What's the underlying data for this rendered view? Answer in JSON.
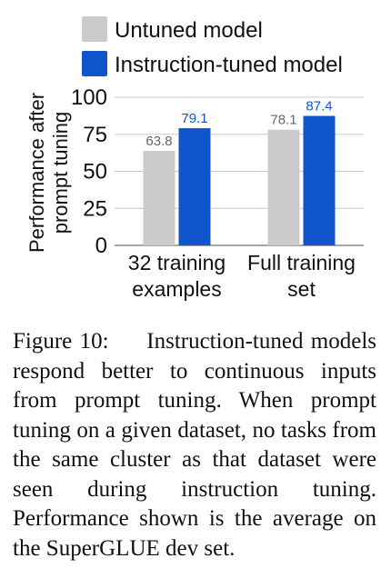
{
  "chart_data": {
    "type": "bar",
    "categories": [
      [
        "32 training",
        "examples"
      ],
      [
        "Full training",
        "set"
      ]
    ],
    "series": [
      {
        "name": "Untuned model",
        "values": [
          63.8,
          78.1
        ],
        "color": "#cccccc",
        "label_color": "#666666"
      },
      {
        "name": "Instruction-tuned model",
        "values": [
          79.1,
          87.4
        ],
        "color": "#1155cc",
        "label_color": "#1155cc"
      }
    ],
    "ylabel": [
      "Performance after",
      "prompt tuning"
    ],
    "ylim": [
      0,
      100
    ],
    "yticks": [
      0,
      25,
      50,
      75,
      100
    ],
    "grid": true,
    "legend_position": "top"
  },
  "caption": {
    "figure_number": "Figure 10:",
    "text": "Instruction-tuned models respond better to continuous inputs from prompt tuning. When prompt tuning on a given dataset, no tasks from the same cluster as that dataset were seen during instruction tuning. Performance shown is the average on the SuperGLUE dev set."
  }
}
